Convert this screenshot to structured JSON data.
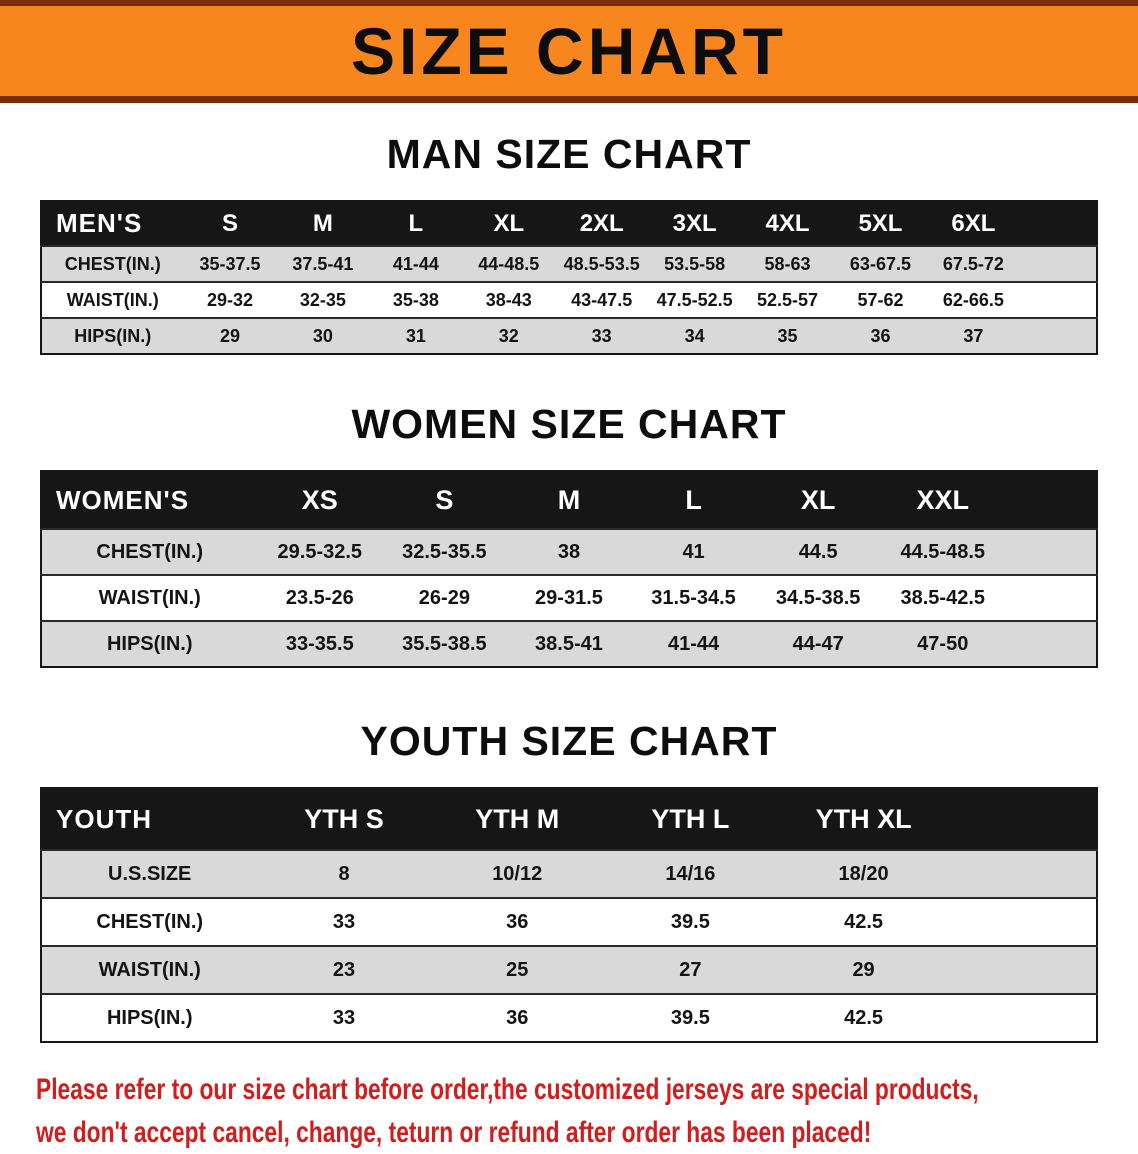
{
  "banner": {
    "title": "SIZE CHART"
  },
  "colors": {
    "banner_orange": "#f6861d",
    "banner_edge_brown": "#7e2c03",
    "table_header_black": "#161616",
    "row_gray": "#d9d9d9",
    "row_white": "#ffffff",
    "note_red": "#d01d1d",
    "text_black": "#111111"
  },
  "chart_data": [
    {
      "type": "table",
      "title": "MAN SIZE CHART",
      "header": [
        "MEN'S",
        "S",
        "M",
        "L",
        "XL",
        "2XL",
        "3XL",
        "4XL",
        "5XL",
        "6XL"
      ],
      "rows": [
        [
          "CHEST(IN.)",
          "35-37.5",
          "37.5-41",
          "41-44",
          "44-48.5",
          "48.5-53.5",
          "53.5-58",
          "58-63",
          "63-67.5",
          "67.5-72"
        ],
        [
          "WAIST(IN.)",
          "29-32",
          "32-35",
          "35-38",
          "38-43",
          "43-47.5",
          "47.5-52.5",
          "52.5-57",
          "57-62",
          "62-66.5"
        ],
        [
          "HIPS(IN.)",
          "29",
          "30",
          "31",
          "32",
          "33",
          "34",
          "35",
          "36",
          "37"
        ]
      ]
    },
    {
      "type": "table",
      "title": "WOMEN SIZE CHART",
      "header": [
        "WOMEN'S",
        "XS",
        "S",
        "M",
        "L",
        "XL",
        "XXL"
      ],
      "rows": [
        [
          "CHEST(IN.)",
          "29.5-32.5",
          "32.5-35.5",
          "38",
          "41",
          "44.5",
          "44.5-48.5"
        ],
        [
          "WAIST(IN.)",
          "23.5-26",
          "26-29",
          "29-31.5",
          "31.5-34.5",
          "34.5-38.5",
          "38.5-42.5"
        ],
        [
          "HIPS(IN.)",
          "33-35.5",
          "35.5-38.5",
          "38.5-41",
          "41-44",
          "44-47",
          "47-50"
        ]
      ]
    },
    {
      "type": "table",
      "title": "YOUTH SIZE CHART",
      "header": [
        "YOUTH",
        "YTH S",
        "YTH M",
        "YTH L",
        "YTH XL"
      ],
      "rows": [
        [
          "U.S.SIZE",
          "8",
          "10/12",
          "14/16",
          "18/20"
        ],
        [
          "CHEST(IN.)",
          "33",
          "36",
          "39.5",
          "42.5"
        ],
        [
          "WAIST(IN.)",
          "23",
          "25",
          "27",
          "29"
        ],
        [
          "HIPS(IN.)",
          "33",
          "36",
          "39.5",
          "42.5"
        ]
      ]
    }
  ],
  "footer_note": {
    "line1": "Please refer to our size chart before order,the customized jerseys are special products,",
    "line2": "we don't accept cancel, change, teturn or refund after order has been placed!"
  }
}
